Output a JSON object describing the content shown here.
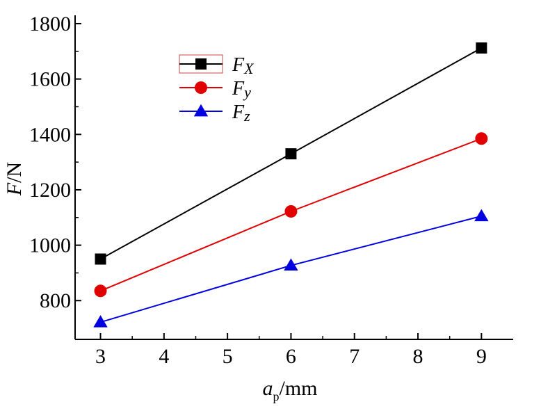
{
  "chart_data": {
    "type": "line",
    "x": [
      3,
      6,
      9
    ],
    "series": [
      {
        "name": "Fx",
        "legend_main": "F",
        "legend_sub": "X",
        "values": [
          950,
          1330,
          1712
        ],
        "color": "#000000",
        "marker": "square"
      },
      {
        "name": "Fy",
        "legend_main": "F",
        "legend_sub": "y",
        "values": [
          835,
          1122,
          1385
        ],
        "color": "#e00000",
        "marker": "circle"
      },
      {
        "name": "Fz",
        "legend_main": "F",
        "legend_sub": "z",
        "values": [
          722,
          927,
          1105
        ],
        "color": "#0000e0",
        "marker": "triangle"
      }
    ],
    "xlabel_main": "a",
    "xlabel_sub": "p",
    "xlabel_unit": "/mm",
    "ylabel_main": "F",
    "ylabel_unit": "/N",
    "xlim": [
      2.6,
      9.5
    ],
    "ylim": [
      660,
      1820
    ],
    "xticks": [
      3,
      4,
      5,
      6,
      7,
      8,
      9
    ],
    "yticks": [
      800,
      1000,
      1200,
      1400,
      1600,
      1800
    ],
    "grid": false,
    "legend_position": "top-left"
  }
}
